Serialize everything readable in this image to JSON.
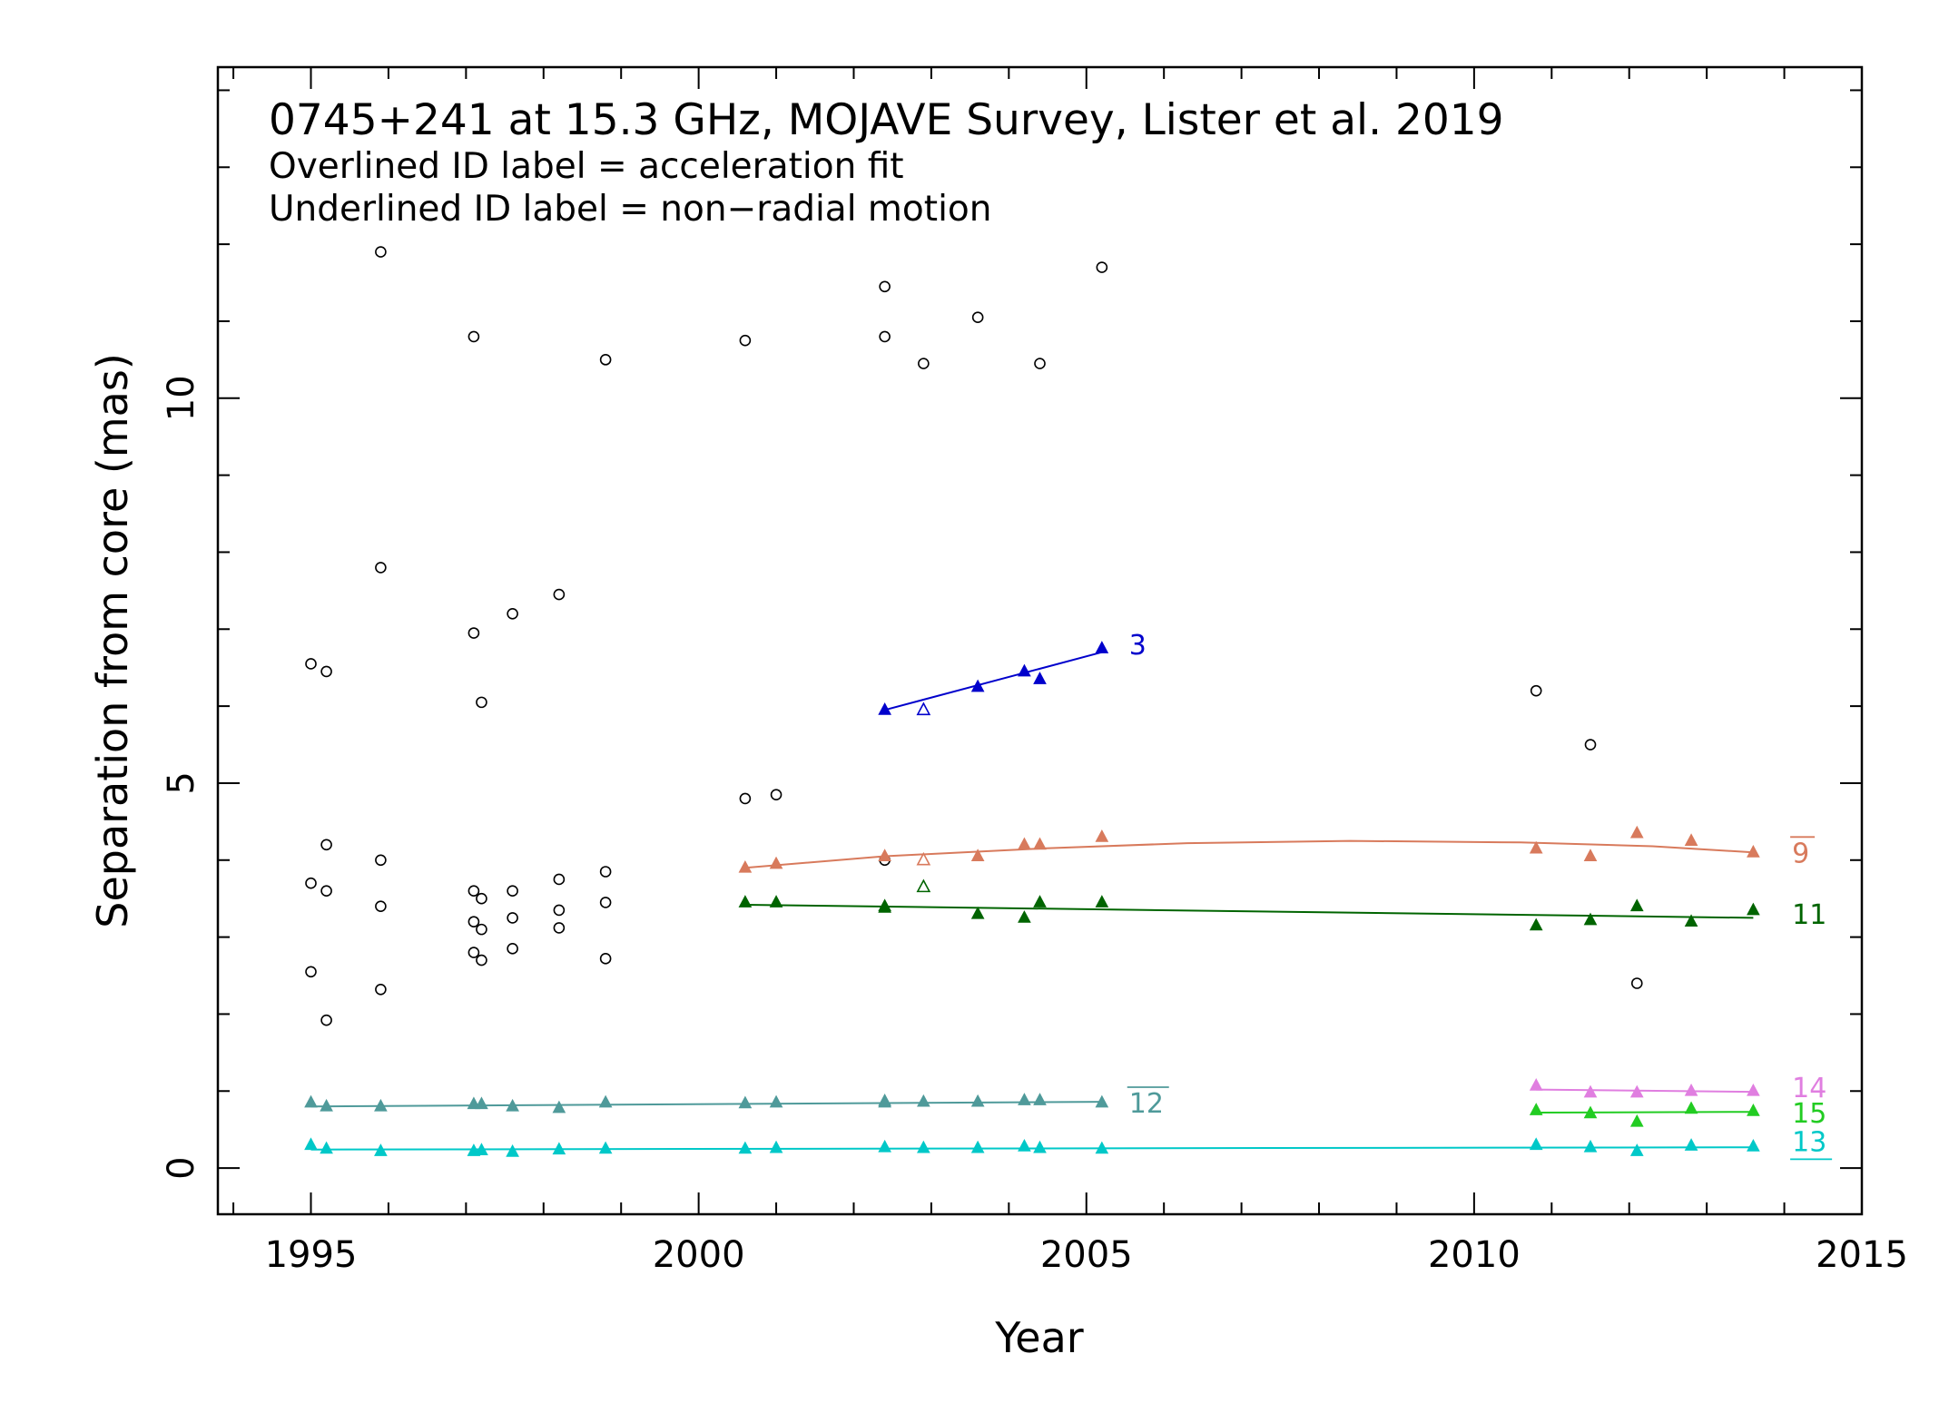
{
  "chart_data": {
    "type": "scatter",
    "title": "0745+241 at 15.3 GHz, MOJAVE Survey, Lister et al. 2019",
    "subtitle_lines": [
      "Overlined ID label = acceleration fit",
      "Underlined ID label = non−radial motion"
    ],
    "xlabel": "Year",
    "ylabel": "Separation from core (mas)",
    "xlim": [
      1993.8,
      2015.0
    ],
    "ylim": [
      -0.6,
      14.3
    ],
    "xticks": [
      1995,
      2000,
      2005,
      2010,
      2015
    ],
    "yticks": [
      0,
      5,
      10
    ],
    "grid": false,
    "legend": "none",
    "unassigned_points": {
      "color": "#000000",
      "marker": "open-circle",
      "points": [
        [
          1995.0,
          6.55
        ],
        [
          1995.0,
          3.7
        ],
        [
          1995.0,
          2.55
        ],
        [
          1995.2,
          6.45
        ],
        [
          1995.2,
          4.2
        ],
        [
          1995.2,
          3.6
        ],
        [
          1995.2,
          1.92
        ],
        [
          1995.9,
          11.9
        ],
        [
          1995.9,
          7.8
        ],
        [
          1995.9,
          4.0
        ],
        [
          1995.9,
          3.4
        ],
        [
          1995.9,
          2.32
        ],
        [
          1997.1,
          10.8
        ],
        [
          1997.1,
          6.95
        ],
        [
          1997.1,
          3.6
        ],
        [
          1997.1,
          3.2
        ],
        [
          1997.1,
          2.8
        ],
        [
          1997.2,
          6.05
        ],
        [
          1997.2,
          3.5
        ],
        [
          1997.2,
          3.1
        ],
        [
          1997.2,
          2.7
        ],
        [
          1997.6,
          7.2
        ],
        [
          1997.6,
          3.6
        ],
        [
          1997.6,
          3.25
        ],
        [
          1997.6,
          2.85
        ],
        [
          1998.2,
          7.45
        ],
        [
          1998.2,
          3.75
        ],
        [
          1998.2,
          3.35
        ],
        [
          1998.2,
          3.12
        ],
        [
          1998.8,
          10.5
        ],
        [
          1998.8,
          3.85
        ],
        [
          1998.8,
          3.45
        ],
        [
          1998.8,
          2.72
        ],
        [
          2000.6,
          10.75
        ],
        [
          2000.6,
          4.8
        ],
        [
          2001.0,
          4.85
        ],
        [
          2002.4,
          11.45
        ],
        [
          2002.4,
          10.8
        ],
        [
          2002.4,
          4.0
        ],
        [
          2002.9,
          10.45
        ],
        [
          2003.6,
          11.05
        ],
        [
          2004.4,
          10.45
        ],
        [
          2005.2,
          11.7
        ],
        [
          2010.8,
          6.2
        ],
        [
          2011.5,
          5.5
        ],
        [
          2012.1,
          2.4
        ]
      ]
    },
    "series": [
      {
        "name": "3",
        "color": "#0000cc",
        "label_style": "plain",
        "label_at": [
          2005.55,
          6.8
        ],
        "fit": [
          [
            2002.4,
            5.95
          ],
          [
            2005.2,
            6.7
          ]
        ],
        "points": [
          [
            2002.4,
            5.95
          ],
          [
            2002.9,
            5.95,
            "open"
          ],
          [
            2003.6,
            6.25
          ],
          [
            2004.2,
            6.45
          ],
          [
            2004.4,
            6.35
          ],
          [
            2005.2,
            6.75
          ]
        ]
      },
      {
        "name": "9",
        "color": "#d87a5c",
        "label_style": "overline",
        "label_at": [
          2014.1,
          4.1
        ],
        "fit": [
          [
            2000.6,
            3.9
          ],
          [
            2002.4,
            4.05
          ],
          [
            2004.4,
            4.15
          ],
          [
            2006.3,
            4.22
          ],
          [
            2008.4,
            4.25
          ],
          [
            2010.6,
            4.23
          ],
          [
            2012.3,
            4.18
          ],
          [
            2013.6,
            4.1
          ]
        ],
        "points": [
          [
            2000.6,
            3.9
          ],
          [
            2001.0,
            3.95
          ],
          [
            2002.4,
            4.05
          ],
          [
            2002.9,
            4.0,
            "open"
          ],
          [
            2003.6,
            4.05
          ],
          [
            2004.2,
            4.2
          ],
          [
            2004.4,
            4.2
          ],
          [
            2005.2,
            4.3
          ],
          [
            2010.8,
            4.15
          ],
          [
            2011.5,
            4.05
          ],
          [
            2012.1,
            4.35
          ],
          [
            2012.8,
            4.25
          ],
          [
            2013.6,
            4.1
          ]
        ]
      },
      {
        "name": "11",
        "color": "#006400",
        "label_style": "plain",
        "label_at": [
          2014.1,
          3.3
        ],
        "fit": [
          [
            2000.6,
            3.42
          ],
          [
            2013.6,
            3.25
          ]
        ],
        "points": [
          [
            2000.6,
            3.45
          ],
          [
            2001.0,
            3.45
          ],
          [
            2002.4,
            3.4
          ],
          [
            2002.4,
            3.38
          ],
          [
            2002.9,
            3.65,
            "open"
          ],
          [
            2003.6,
            3.3
          ],
          [
            2004.2,
            3.25
          ],
          [
            2004.4,
            3.45
          ],
          [
            2005.2,
            3.45
          ],
          [
            2010.8,
            3.15
          ],
          [
            2011.5,
            3.22
          ],
          [
            2012.1,
            3.4
          ],
          [
            2012.8,
            3.2
          ],
          [
            2013.6,
            3.35
          ]
        ]
      },
      {
        "name": "12",
        "color": "#4f9a9a",
        "label_style": "overline",
        "label_at": [
          2005.55,
          0.85
        ],
        "fit": [
          [
            1995.0,
            0.8
          ],
          [
            2005.2,
            0.86
          ]
        ],
        "points": [
          [
            1995.0,
            0.85
          ],
          [
            1995.2,
            0.8
          ],
          [
            1995.9,
            0.8
          ],
          [
            1997.1,
            0.83
          ],
          [
            1997.2,
            0.83
          ],
          [
            1997.6,
            0.8
          ],
          [
            1998.2,
            0.78
          ],
          [
            1998.8,
            0.85
          ],
          [
            2000.6,
            0.84
          ],
          [
            2001.0,
            0.85
          ],
          [
            2002.4,
            0.87
          ],
          [
            2002.4,
            0.85
          ],
          [
            2002.9,
            0.86
          ],
          [
            2003.6,
            0.86
          ],
          [
            2004.2,
            0.88
          ],
          [
            2004.4,
            0.88
          ],
          [
            2005.2,
            0.85
          ]
        ]
      },
      {
        "name": "13",
        "color": "#00c8c8",
        "label_style": "underline",
        "label_at": [
          2014.1,
          0.35
        ],
        "fit": [
          [
            1995.0,
            0.24
          ],
          [
            2013.6,
            0.27
          ]
        ],
        "points": [
          [
            1995.0,
            0.3
          ],
          [
            1995.2,
            0.25
          ],
          [
            1995.9,
            0.22
          ],
          [
            1997.1,
            0.22
          ],
          [
            1997.2,
            0.23
          ],
          [
            1997.6,
            0.21
          ],
          [
            1998.2,
            0.24
          ],
          [
            1998.8,
            0.25
          ],
          [
            2000.6,
            0.25
          ],
          [
            2001.0,
            0.26
          ],
          [
            2002.4,
            0.27
          ],
          [
            2002.9,
            0.26
          ],
          [
            2003.6,
            0.26
          ],
          [
            2004.2,
            0.28
          ],
          [
            2004.4,
            0.26
          ],
          [
            2005.2,
            0.25
          ],
          [
            2010.8,
            0.3
          ],
          [
            2011.5,
            0.27
          ],
          [
            2012.1,
            0.22
          ],
          [
            2012.8,
            0.29
          ],
          [
            2013.6,
            0.28
          ]
        ]
      },
      {
        "name": "14",
        "color": "#e07ee0",
        "label_style": "plain",
        "label_at": [
          2014.1,
          1.05
        ],
        "fit": [
          [
            2010.8,
            1.02
          ],
          [
            2013.6,
            0.99
          ]
        ],
        "points": [
          [
            2010.8,
            1.07
          ],
          [
            2011.5,
            0.98
          ],
          [
            2012.1,
            0.98
          ],
          [
            2012.8,
            1.0
          ],
          [
            2013.6,
            1.0
          ]
        ]
      },
      {
        "name": "15",
        "color": "#22cc22",
        "label_style": "plain",
        "label_at": [
          2014.1,
          0.72
        ],
        "fit": [
          [
            2010.8,
            0.72
          ],
          [
            2013.6,
            0.73
          ]
        ],
        "points": [
          [
            2010.8,
            0.75
          ],
          [
            2011.5,
            0.71
          ],
          [
            2012.1,
            0.6
          ],
          [
            2012.8,
            0.77
          ],
          [
            2013.6,
            0.74
          ]
        ]
      }
    ]
  }
}
